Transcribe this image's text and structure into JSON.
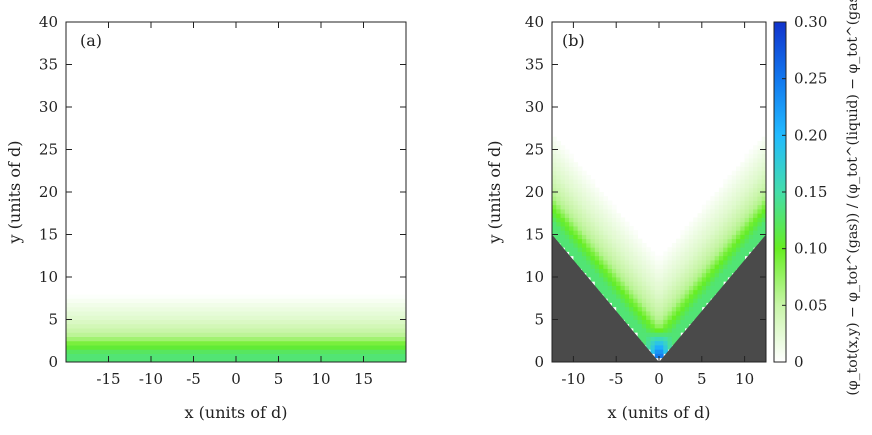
{
  "chart_data": [
    {
      "type": "heatmap",
      "panel_label": "(a)",
      "xlabel": "x (units of d)",
      "ylabel": "y (units of d)",
      "xlim": [
        -20,
        20
      ],
      "ylim": [
        0,
        40
      ],
      "xticks": [
        -15,
        -10,
        -5,
        0,
        5,
        10,
        15
      ],
      "yticks": [
        0,
        5,
        10,
        15,
        20,
        25,
        30,
        35,
        40
      ],
      "description_of_field": "horizontal layers: value depends on y only",
      "profile_y": [
        0,
        1,
        2,
        3,
        4,
        5,
        6,
        7,
        8
      ],
      "profile_value": [
        0.13,
        0.13,
        0.1,
        0.06,
        0.045,
        0.03,
        0.02,
        0.01,
        0.0
      ]
    },
    {
      "type": "heatmap",
      "panel_label": "(b)",
      "xlabel": "x (units of d)",
      "ylabel": "y (units of d)",
      "xlim": [
        -12.5,
        12.5
      ],
      "ylim": [
        0,
        40
      ],
      "xticks": [
        -10,
        -5,
        0,
        5,
        10
      ],
      "yticks": [
        0,
        5,
        10,
        15,
        20,
        25,
        30,
        35,
        40
      ],
      "wedge_excluded_region": "solid wedge: y < 1.2*|x| (dark gray)",
      "wedge_slope": 1.2,
      "profile_distance": [
        0,
        1,
        2,
        3,
        4,
        5,
        6,
        7,
        8
      ],
      "profile_value": [
        0.13,
        0.13,
        0.1,
        0.06,
        0.045,
        0.03,
        0.02,
        0.01,
        0.0
      ],
      "corner_peak_value": 0.3
    }
  ],
  "colorbar": {
    "label": "(φ_tot(x,y) − φ_tot^(gas)) / (φ_tot^(liquid) − φ_tot^(gas))",
    "min": 0,
    "max": 0.3,
    "ticks": [
      "0",
      "0.05",
      "0.10",
      "0.15",
      "0.20",
      "0.25",
      "0.30"
    ],
    "tick_values": [
      0,
      0.05,
      0.1,
      0.15,
      0.2,
      0.25,
      0.3
    ]
  },
  "colors": {
    "wedge": "#4a4a4a",
    "colormap": [
      "#ffffff",
      "#c8f5a8",
      "#66ee22",
      "#44ddaa",
      "#22bbff",
      "#1177ee",
      "#1133cc"
    ]
  }
}
